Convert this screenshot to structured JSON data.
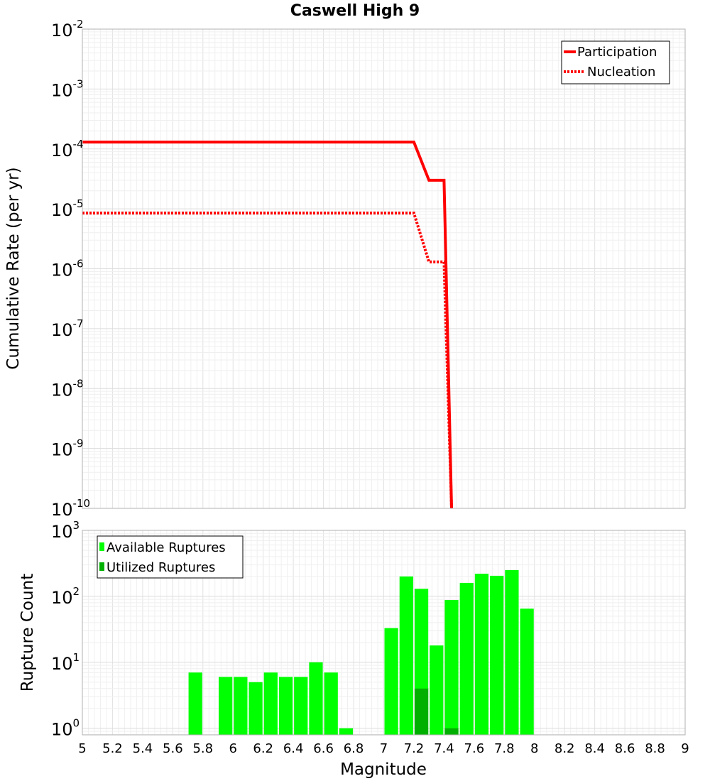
{
  "chart_data": [
    {
      "type": "line",
      "title": "Caswell High 9",
      "xlabel": "Magnitude",
      "ylabel": "Cumulative Rate (per yr)",
      "xlim": [
        5,
        9
      ],
      "ylim_log10": [
        -10,
        -2
      ],
      "yscale": "log",
      "grid": true,
      "legend_position": "top-right",
      "series": [
        {
          "name": "Participation",
          "style": "solid",
          "color": "#ff0000",
          "x": [
            5.0,
            7.2,
            7.3,
            7.4,
            7.45
          ],
          "y": [
            0.00013,
            0.00013,
            3e-05,
            3e-05,
            1e-10
          ]
        },
        {
          "name": "Nucleation",
          "style": "dotted",
          "color": "#ff0000",
          "x": [
            5.0,
            7.2,
            7.3,
            7.4,
            7.45
          ],
          "y": [
            8.5e-06,
            8.5e-06,
            1.3e-06,
            1.3e-06,
            1e-10
          ]
        }
      ]
    },
    {
      "type": "bar",
      "xlabel": "Magnitude",
      "ylabel": "Rupture Count",
      "xlim": [
        5,
        9
      ],
      "ylim_log10": [
        -0.1,
        3
      ],
      "yscale": "log",
      "grid": true,
      "legend_position": "top-left",
      "bin_width": 0.1,
      "series": [
        {
          "name": "Available Ruptures",
          "color": "#00ff00",
          "x": [
            5.75,
            5.95,
            6.05,
            6.15,
            6.25,
            6.35,
            6.45,
            6.55,
            6.65,
            6.75,
            7.05,
            7.15,
            7.25,
            7.35,
            7.45,
            7.55,
            7.65,
            7.75,
            7.85,
            7.95
          ],
          "values": [
            7,
            6,
            6,
            5,
            7,
            6,
            6,
            10,
            7,
            1,
            33,
            200,
            130,
            18,
            88,
            160,
            220,
            205,
            250,
            65
          ]
        },
        {
          "name": "Utilized Ruptures",
          "color": "#00b000",
          "x": [
            7.25,
            7.45
          ],
          "values": [
            4,
            1
          ]
        }
      ]
    }
  ],
  "x_ticks": [
    "5",
    "5.2",
    "5.4",
    "5.6",
    "5.8",
    "6",
    "6.2",
    "6.4",
    "6.6",
    "6.8",
    "7",
    "7.2",
    "7.4",
    "7.6",
    "7.8",
    "8",
    "8.2",
    "8.4",
    "8.6",
    "8.8",
    "9"
  ],
  "top_y_ticks": [
    {
      "base": "10",
      "exp": "-2"
    },
    {
      "base": "10",
      "exp": "-3"
    },
    {
      "base": "10",
      "exp": "-4"
    },
    {
      "base": "10",
      "exp": "-5"
    },
    {
      "base": "10",
      "exp": "-6"
    },
    {
      "base": "10",
      "exp": "-7"
    },
    {
      "base": "10",
      "exp": "-8"
    },
    {
      "base": "10",
      "exp": "-9"
    },
    {
      "base": "10",
      "exp": "-10"
    }
  ],
  "bottom_y_ticks": [
    {
      "base": "10",
      "exp": "3"
    },
    {
      "base": "10",
      "exp": "2"
    },
    {
      "base": "10",
      "exp": "1"
    },
    {
      "base": "10",
      "exp": "0"
    }
  ]
}
